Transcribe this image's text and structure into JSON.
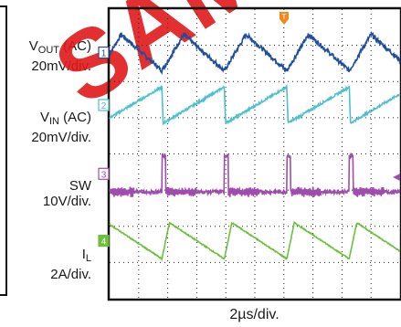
{
  "watermark": "SAMPLE",
  "channels": [
    {
      "key": "vout",
      "name_main": "V",
      "name_sub": "OUT",
      "name_suffix": " (AC)",
      "scale": "20mV/div.",
      "marker": "1",
      "color": "#1f4e9a"
    },
    {
      "key": "vin",
      "name_main": "V",
      "name_sub": "IN",
      "name_suffix": " (AC)",
      "scale": "20mV/div.",
      "marker": "2",
      "color": "#4cc0cf"
    },
    {
      "key": "sw",
      "name_main": "SW",
      "name_sub": "",
      "name_suffix": "",
      "scale": "10V/div.",
      "marker": "3",
      "color": "#a04cae"
    },
    {
      "key": "il",
      "name_main": "I",
      "name_sub": "L",
      "name_suffix": "",
      "scale": "2A/div.",
      "marker": "4",
      "color": "#6cc03e"
    }
  ],
  "timebase": "2µs/div.",
  "trigger_marker": "T",
  "chart_data": {
    "type": "line",
    "x_unit": "µs",
    "x_divisions": 10,
    "y_divisions": 8,
    "time_per_div_us": 2,
    "switching_period_us": 4.3,
    "first_edge_us": 3.6,
    "grid": true,
    "series": [
      {
        "name": "VOUT (AC)",
        "shape": "ripple",
        "peak_to_peak_div": 1.0,
        "zero_level_div": 6.8
      },
      {
        "name": "VIN (AC)",
        "shape": "sawtooth_falling_edge",
        "peak_to_peak_div": 1.0,
        "zero_level_div": 5.35
      },
      {
        "name": "SW",
        "shape": "pulse",
        "peak_to_peak_div": 1.0,
        "zero_level_div": 3.45
      },
      {
        "name": "IL",
        "shape": "triangle_fast_rise",
        "peak_to_peak_div": 1.0,
        "zero_level_div": 1.6
      }
    ]
  }
}
